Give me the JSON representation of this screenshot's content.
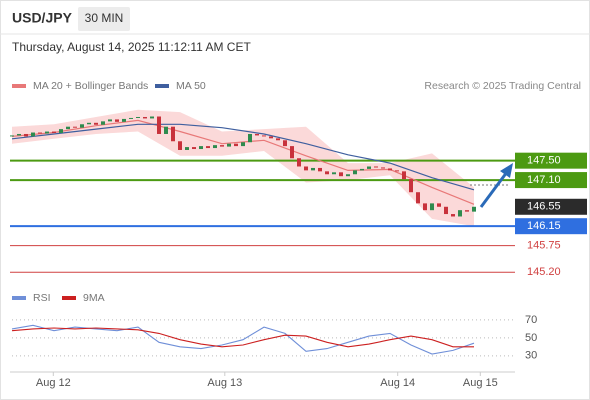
{
  "header": {
    "symbol": "USD/JPY",
    "interval": "30 MIN",
    "datetime": "Thursday, August 14, 2025 11:12:11 AM CET"
  },
  "chart_data": [
    {
      "type": "candlestick",
      "credit": "Research © 2025 Trading Central",
      "up_color": "#2e8b4e",
      "down_color": "#c8323c",
      "closes": [
        148.02,
        148.05,
        148.0,
        148.08,
        148.06,
        148.1,
        148.07,
        148.15,
        148.2,
        148.18,
        148.25,
        148.28,
        148.24,
        148.31,
        148.35,
        148.3,
        148.36,
        148.38,
        148.4,
        148.37,
        148.41,
        148.05,
        148.2,
        147.9,
        147.72,
        147.78,
        147.74,
        147.8,
        147.76,
        147.82,
        147.79,
        147.85,
        147.8,
        147.88,
        148.05,
        148.02,
        148.0,
        147.96,
        147.92,
        147.8,
        147.55,
        147.38,
        147.3,
        147.35,
        147.28,
        147.22,
        147.26,
        147.18,
        147.22,
        147.3,
        147.33,
        147.38,
        147.36,
        147.34,
        147.3,
        147.28,
        147.12,
        146.85,
        146.62,
        146.48,
        146.62,
        146.55,
        146.4,
        146.35,
        146.48,
        146.45,
        146.55
      ],
      "series": [
        {
          "name": "MA 20 + Bollinger Bands",
          "color": "#e87878",
          "band_color": "#fbd9d9",
          "x": [
            0,
            6,
            12,
            18,
            24,
            30,
            36,
            42,
            48,
            54,
            60,
            66
          ],
          "values": [
            148.0,
            148.08,
            148.22,
            148.33,
            148.1,
            147.85,
            147.92,
            147.6,
            147.3,
            147.32,
            146.95,
            146.6
          ],
          "upper": [
            148.2,
            148.25,
            148.4,
            148.55,
            148.5,
            148.1,
            148.15,
            148.2,
            147.45,
            147.45,
            147.65,
            146.95
          ],
          "lower": [
            147.85,
            147.95,
            148.05,
            148.1,
            147.6,
            147.6,
            147.7,
            147.05,
            147.1,
            147.2,
            146.3,
            146.15
          ]
        },
        {
          "name": "MA 50",
          "color": "#3f5f9f",
          "x": [
            0,
            6,
            12,
            18,
            24,
            30,
            36,
            42,
            48,
            54,
            60,
            66
          ],
          "values": [
            147.95,
            148.05,
            148.15,
            148.25,
            148.25,
            148.18,
            148.05,
            147.85,
            147.62,
            147.45,
            147.15,
            146.9
          ]
        }
      ],
      "levels": [
        {
          "value": 147.5,
          "label": "147.50",
          "color": "#4c9a12",
          "line": true,
          "box": true
        },
        {
          "value": 147.1,
          "label": "147.10",
          "color": "#4c9a12",
          "line": true,
          "box": true
        },
        {
          "value": 146.55,
          "label": "146.55",
          "color": "#2b2b2b",
          "line": false,
          "box": true
        },
        {
          "value": 146.15,
          "label": "146.15",
          "color": "#2f6fe0",
          "line": true,
          "box": true
        },
        {
          "value": 145.75,
          "label": "145.75",
          "color": "#d04040",
          "line": true,
          "box": false
        },
        {
          "value": 145.2,
          "label": "145.20",
          "color": "#d04040",
          "line": true,
          "box": false
        }
      ],
      "xlim": [
        0,
        72
      ],
      "ylim": [
        145.0,
        148.75
      ]
    },
    {
      "type": "line",
      "series": [
        {
          "name": "RSI",
          "color": "#6f8fd8",
          "x": [
            0,
            3,
            6,
            9,
            12,
            15,
            18,
            21,
            24,
            27,
            30,
            33,
            36,
            39,
            42,
            45,
            48,
            51,
            54,
            57,
            60,
            63,
            66
          ],
          "values": [
            60,
            64,
            58,
            62,
            60,
            58,
            62,
            45,
            40,
            38,
            42,
            48,
            62,
            55,
            35,
            38,
            45,
            52,
            55,
            42,
            32,
            36,
            44
          ]
        },
        {
          "name": "9MA",
          "color": "#cc2020",
          "x": [
            0,
            3,
            6,
            9,
            12,
            15,
            18,
            21,
            24,
            27,
            30,
            33,
            36,
            39,
            42,
            45,
            48,
            51,
            54,
            57,
            60,
            63,
            66
          ],
          "values": [
            58,
            60,
            61,
            60,
            61,
            60,
            59,
            55,
            48,
            43,
            40,
            42,
            48,
            53,
            52,
            45,
            40,
            43,
            48,
            52,
            48,
            40,
            40
          ]
        }
      ],
      "xlim": [
        0,
        72
      ],
      "ylim": [
        12,
        81
      ],
      "yticks": [
        70,
        50,
        30
      ],
      "grid": true,
      "xticks": [
        {
          "value": 5.9,
          "label": "Aug 12"
        },
        {
          "value": 30.4,
          "label": "Aug 13"
        },
        {
          "value": 55.1,
          "label": "Aug 14"
        },
        {
          "value": 66.9,
          "label": "Aug 15"
        }
      ]
    }
  ]
}
